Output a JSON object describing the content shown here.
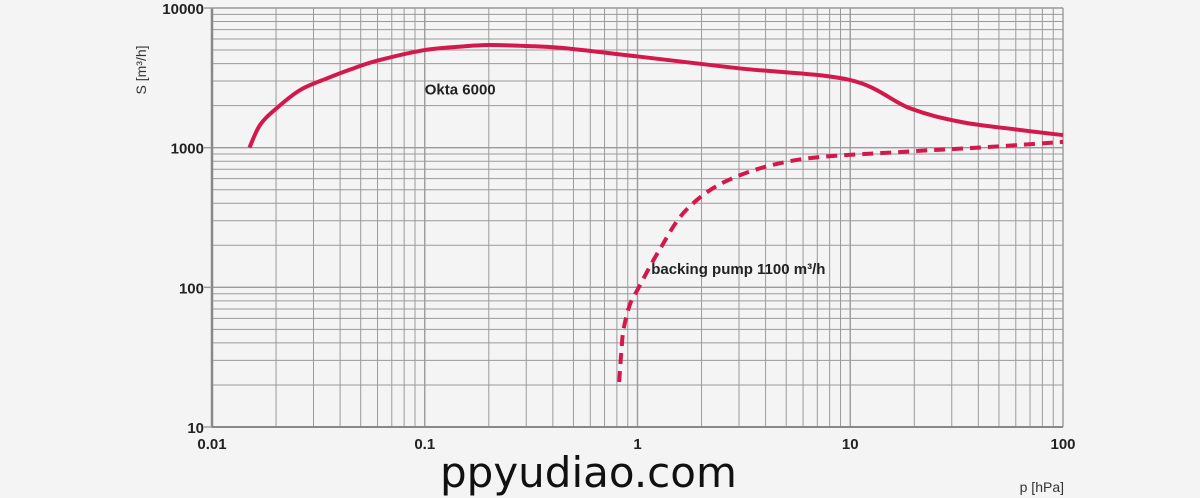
{
  "chart_data": {
    "type": "line",
    "title": "",
    "xlabel": "p [hPa]",
    "ylabel": "S [m³/h]",
    "xscale": "log",
    "yscale": "log",
    "xlim": [
      0.01,
      100
    ],
    "ylim": [
      10,
      10000
    ],
    "x_ticks": [
      {
        "value": 0.01,
        "label": "0.01"
      },
      {
        "value": 0.1,
        "label": "0.1"
      },
      {
        "value": 1,
        "label": "1"
      },
      {
        "value": 10,
        "label": "10"
      },
      {
        "value": 100,
        "label": "100"
      }
    ],
    "y_ticks": [
      {
        "value": 10,
        "label": "10"
      },
      {
        "value": 100,
        "label": "100"
      },
      {
        "value": 1000,
        "label": "1000"
      },
      {
        "value": 10000,
        "label": "10000"
      }
    ],
    "grid": true,
    "series": [
      {
        "name": "Okta 6000",
        "style": "solid",
        "color": "#d3184c",
        "x": [
          0.015,
          0.0168,
          0.02,
          0.026,
          0.035,
          0.044,
          0.06,
          0.1,
          0.15,
          0.2,
          0.3,
          0.44,
          1,
          3,
          10,
          19,
          33,
          60,
          100
        ],
        "y": [
          1000,
          1450,
          1900,
          2590,
          3150,
          3600,
          4200,
          5000,
          5300,
          5430,
          5350,
          5180,
          4500,
          3700,
          3050,
          1920,
          1530,
          1350,
          1230
        ]
      },
      {
        "name": "backing pump 1100 m³/h",
        "style": "dashed",
        "color": "#d3184c",
        "x": [
          0.82,
          0.84,
          0.86,
          0.92,
          1.0,
          1.27,
          1.7,
          2.7,
          5.7,
          17,
          40,
          100
        ],
        "y": [
          21,
          35,
          50,
          75,
          96,
          186,
          360,
          590,
          820,
          930,
          1000,
          1100
        ]
      }
    ],
    "annotations": [
      {
        "text": "Okta 6000",
        "x": 0.1,
        "y": 2400
      },
      {
        "text": "backing pump 1100 m³/h",
        "x": 1.16,
        "y": 125
      }
    ],
    "watermark": "ppyudiao.com"
  }
}
